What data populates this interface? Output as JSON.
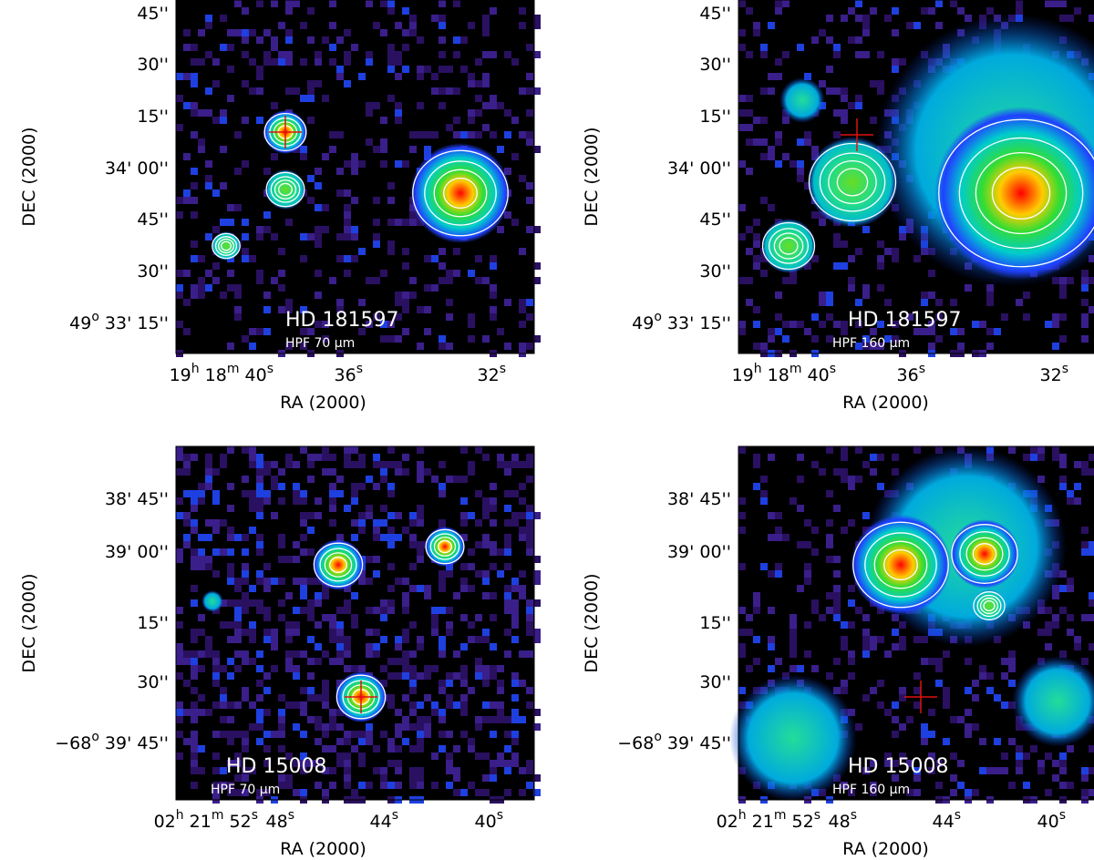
{
  "figure": {
    "panels": [
      {
        "object": "HD 181597",
        "band": "HPF 70 μm",
        "xlabel": "RA (2000)",
        "ylabel": "DEC (2000)",
        "xticks": [
          [
            "19",
            "h",
            " 18",
            "m",
            " 40",
            "s"
          ],
          [
            "36",
            "s"
          ],
          [
            "32",
            "s"
          ]
        ],
        "yticks": [
          [
            "45''"
          ],
          [
            "30''"
          ],
          [
            "15''"
          ],
          [
            "34' 00''"
          ],
          [
            "45''"
          ],
          [
            "30''"
          ],
          [
            "49",
            "o",
            " 33' 15''"
          ]
        ]
      },
      {
        "object": "HD 181597",
        "band": "HPF 160 μm",
        "xlabel": "RA (2000)",
        "ylabel": "DEC (2000)",
        "xticks": [
          [
            "19",
            "h",
            " 18",
            "m",
            " 40",
            "s"
          ],
          [
            "36",
            "s"
          ],
          [
            "32",
            "s"
          ]
        ],
        "yticks": [
          [
            "45''"
          ],
          [
            "30''"
          ],
          [
            "15''"
          ],
          [
            "34' 00''"
          ],
          [
            "45''"
          ],
          [
            "30''"
          ],
          [
            "49",
            "o",
            " 33' 15''"
          ]
        ]
      },
      {
        "object": "HD 15008",
        "band": "HPF 70 μm",
        "xlabel": "RA (2000)",
        "ylabel": "DEC (2000)",
        "xticks": [
          [
            "02",
            "h",
            " 21",
            "m",
            " 52",
            "s"
          ],
          [
            "48",
            "s"
          ],
          [
            "44",
            "s"
          ],
          [
            "40",
            "s"
          ]
        ],
        "yticks": [
          [
            "38' 45''"
          ],
          [
            "39' 00''"
          ],
          [
            "15''"
          ],
          [
            "30''"
          ],
          [
            "−68",
            "o",
            " 39' 45''"
          ]
        ]
      },
      {
        "object": "HD 15008",
        "band": "HPF 160 μm",
        "xlabel": "RA (2000)",
        "ylabel": "DEC (2000)",
        "xticks": [
          [
            "02",
            "h",
            " 21",
            "m",
            " 52",
            "s"
          ],
          [
            "48",
            "s"
          ],
          [
            "44",
            "s"
          ],
          [
            "40",
            "s"
          ]
        ],
        "yticks": [
          [
            "38' 45''"
          ],
          [
            "39' 00''"
          ],
          [
            "15''"
          ],
          [
            "30''"
          ],
          [
            "−68",
            "o",
            " 39' 45''"
          ]
        ]
      }
    ]
  }
}
